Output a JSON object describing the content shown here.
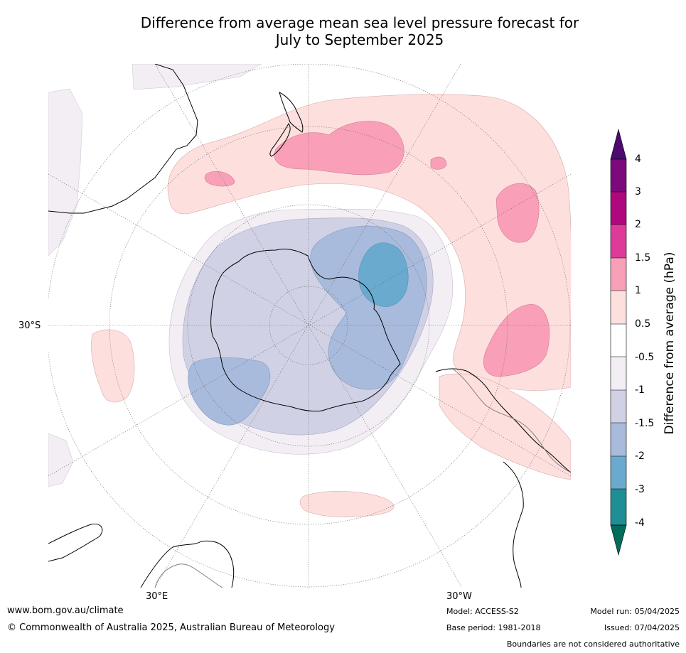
{
  "title": {
    "line1": "Difference from average mean sea level pressure forecast for",
    "line2": "July to September 2025"
  },
  "map": {
    "projection": "south-polar-stereographic",
    "lat_label": "30°S",
    "lon_labels": {
      "east": "30°E",
      "west": "30°W"
    }
  },
  "colorbar": {
    "title": "Difference from average (hPa)",
    "ticks": [
      "4",
      "3",
      "2",
      "1.5",
      "1",
      "0.5",
      "-0.5",
      "-1",
      "-1.5",
      "-2",
      "-3",
      "-4"
    ],
    "colors": {
      "above_4": "#4d0a70",
      "3_to_4": "#7d0a7d",
      "2_to_3": "#b0077f",
      "1.5_to_2": "#de3a9c",
      "1_to_1.5": "#f9a0b8",
      "0.5_to_1": "#fde0de",
      "-0.5_to_0.5": "#ffffff",
      "-1_to_-0.5": "#f2eef4",
      "-1.5_to_-1": "#d1d1e5",
      "-2_to_-1.5": "#a8bbdc",
      "-3_to_-2": "#6aaacf",
      "-4_to_-3": "#1d8f95",
      "below_-4": "#016c59"
    }
  },
  "footer": {
    "url": "www.bom.gov.au/climate",
    "copyright": "© Commonwealth of Australia 2025, Australian Bureau of Meteorology",
    "model": "Model: ACCESS-S2",
    "base_period": "Base period: 1981-2018",
    "model_run": "Model run: 05/04/2025",
    "issued": "Issued: 07/04/2025",
    "disclaimer": "Boundaries are not considered authoritative"
  }
}
